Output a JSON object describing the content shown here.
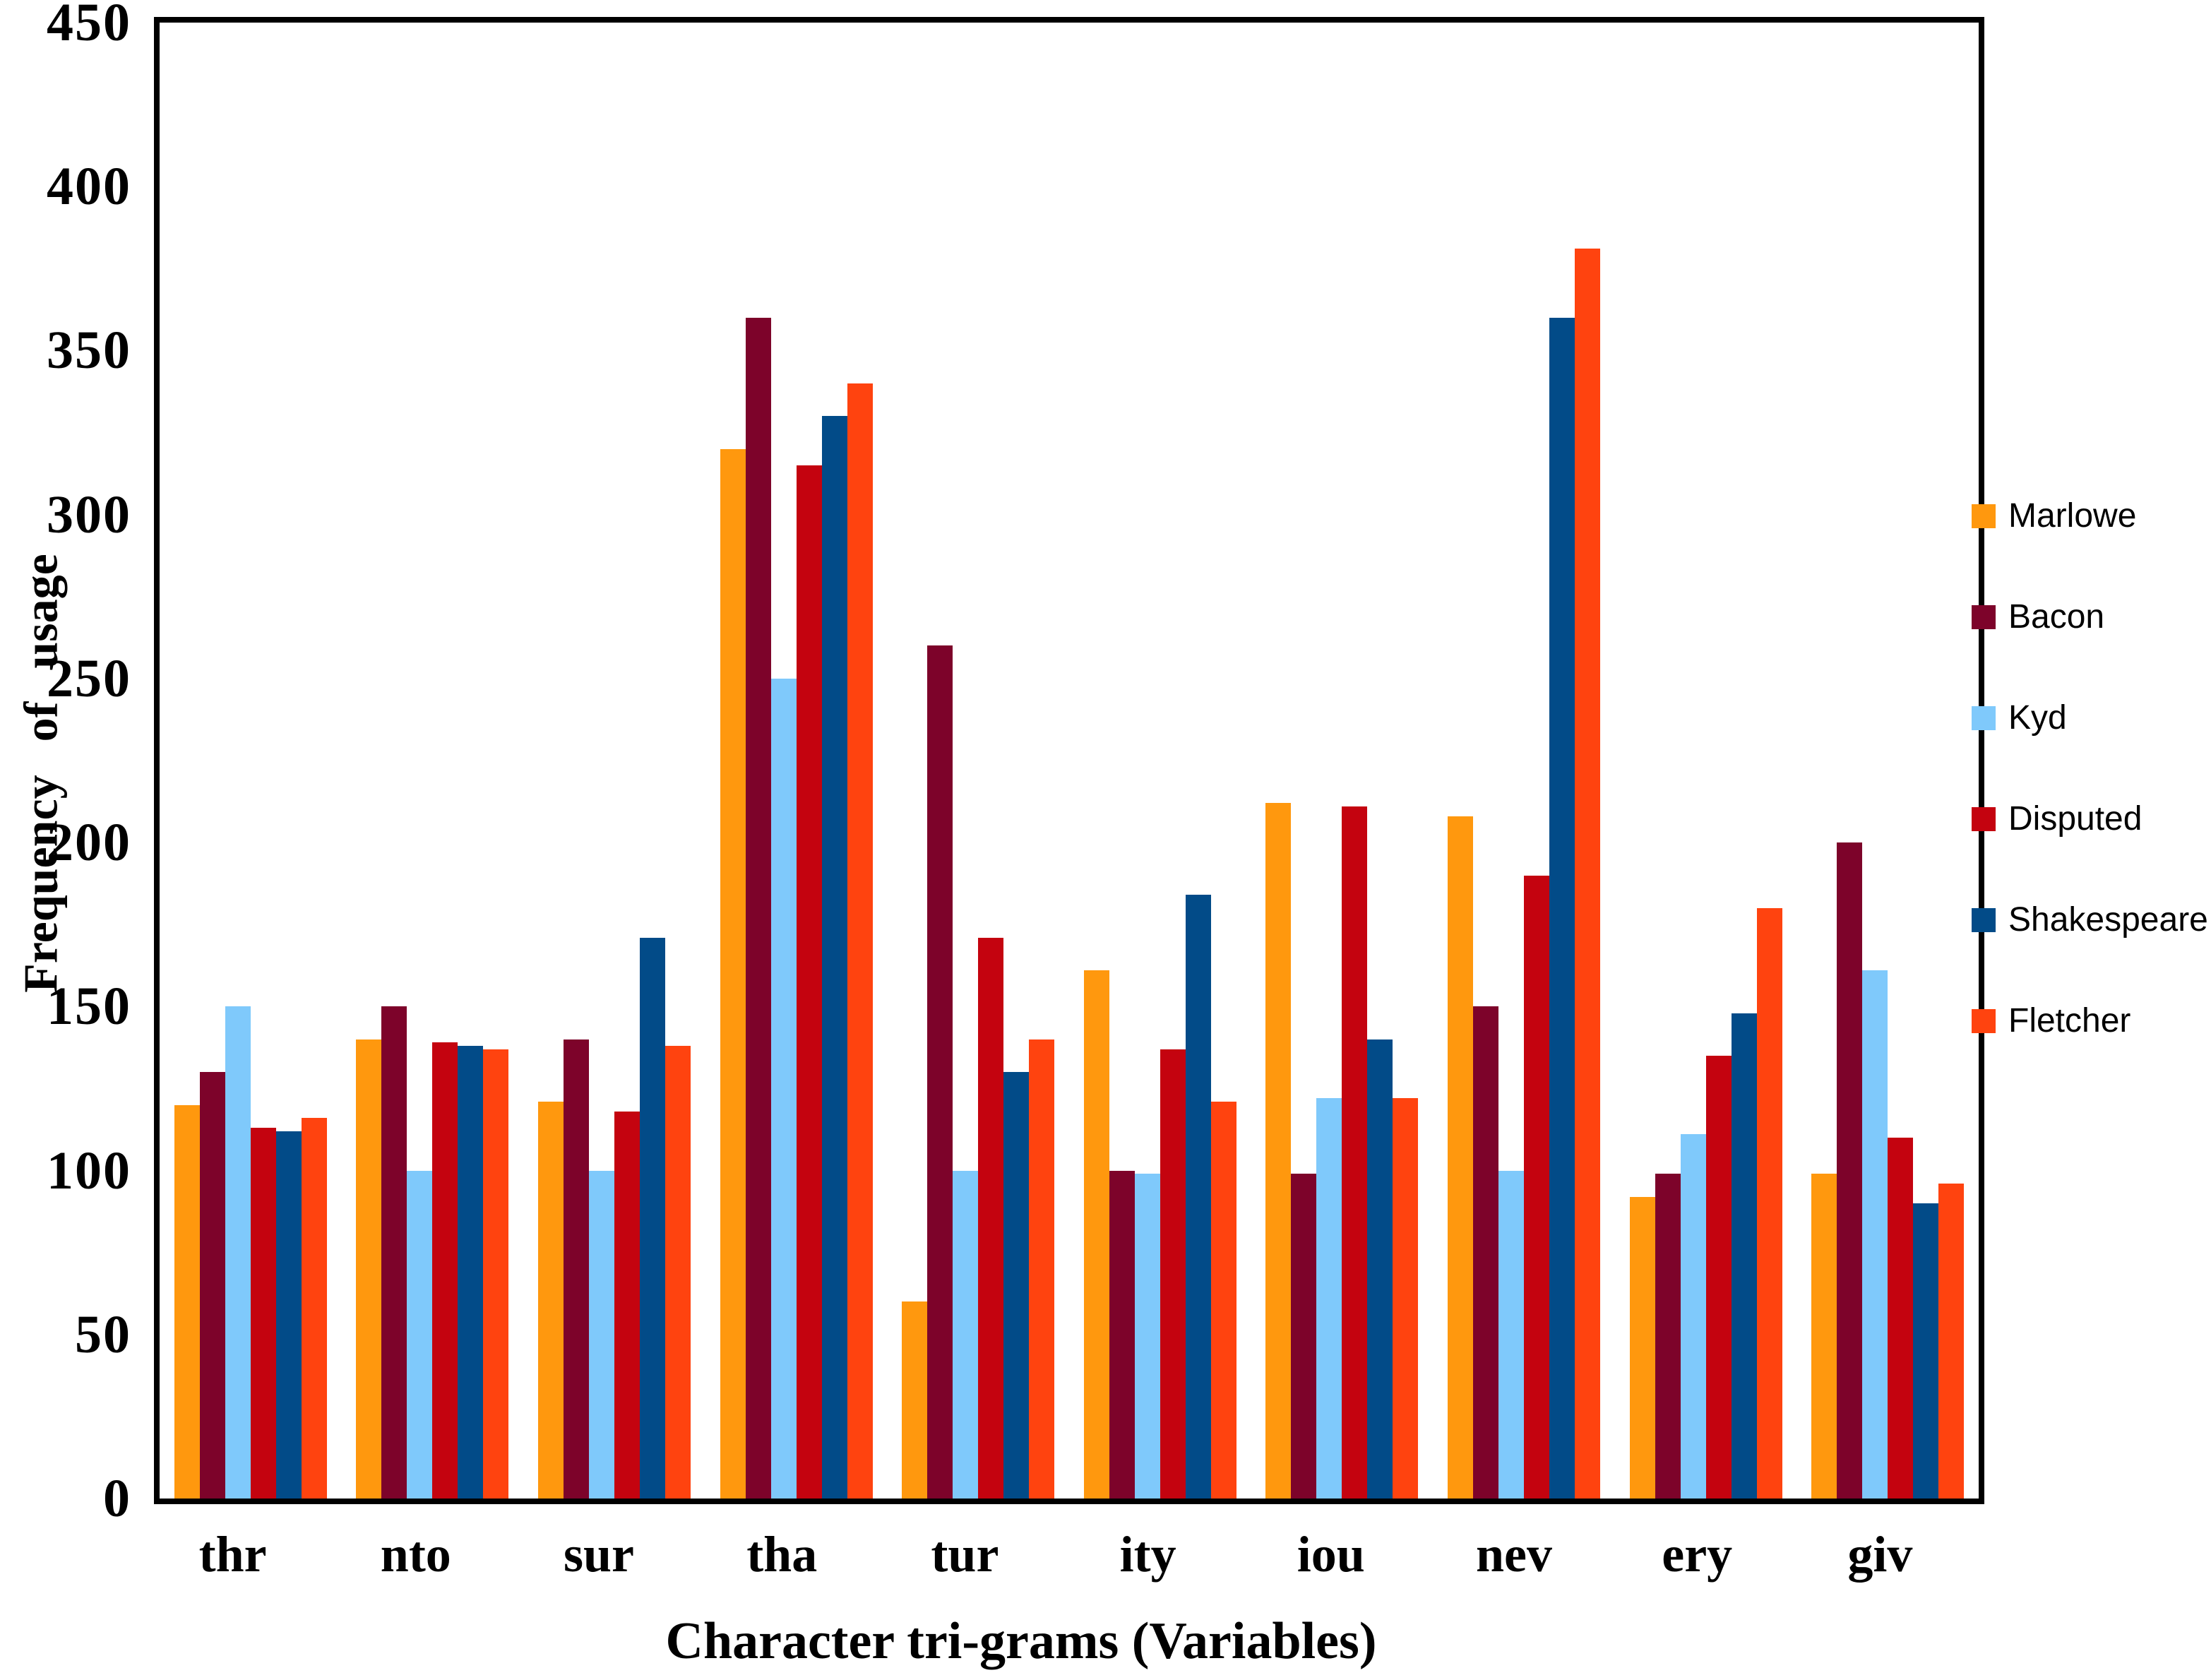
{
  "chart_data": {
    "type": "bar",
    "title": "",
    "xlabel": "Character tri-grams (Variables)",
    "ylabel": "Frequency of usage",
    "ylim": [
      0,
      450
    ],
    "ytick_step": 50,
    "yticks": [
      0,
      50,
      100,
      150,
      200,
      250,
      300,
      350,
      400,
      450
    ],
    "grid": false,
    "legend_position": "right",
    "plot_border_color": "#000000",
    "background_color": "#ffffff",
    "categories": [
      "thr",
      "nto",
      "sur",
      "tha",
      "tur",
      "ity",
      "iou",
      "nev",
      "ery",
      "giv"
    ],
    "series": [
      {
        "name": "Marlowe",
        "color": "#FF980E",
        "values": [
          120,
          140,
          121,
          320,
          60,
          161,
          212,
          208,
          92,
          99
        ]
      },
      {
        "name": "Bacon",
        "color": "#7D032A",
        "values": [
          130,
          150,
          140,
          360,
          260,
          100,
          99,
          150,
          99,
          200
        ]
      },
      {
        "name": "Kyd",
        "color": "#7FC9FB",
        "values": [
          150,
          100,
          100,
          250,
          100,
          99,
          122,
          100,
          111,
          161
        ]
      },
      {
        "name": "Disputed",
        "color": "#C4030F",
        "values": [
          113,
          139,
          118,
          315,
          171,
          137,
          211,
          190,
          135,
          110
        ]
      },
      {
        "name": "Shakespeare",
        "color": "#024B88",
        "values": [
          112,
          138,
          171,
          330,
          130,
          184,
          140,
          360,
          148,
          90
        ]
      },
      {
        "name": "Fletcher",
        "color": "#FF430F",
        "values": [
          116,
          137,
          138,
          340,
          140,
          121,
          122,
          381,
          180,
          96
        ]
      }
    ]
  }
}
